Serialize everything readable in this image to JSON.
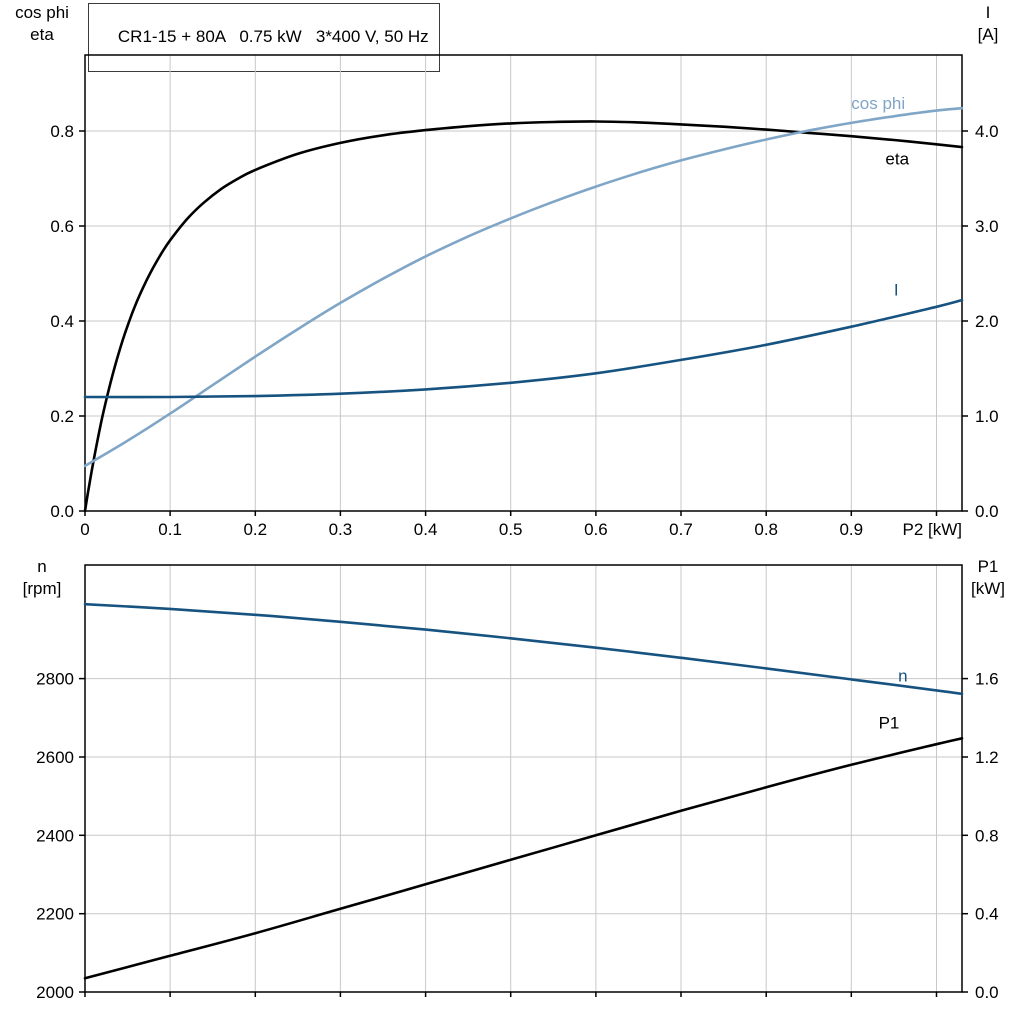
{
  "header": {
    "title": "CR1-15 + 80A   0.75 kW   3*400 V, 50 Hz"
  },
  "colors": {
    "grid": "#c8c8c8",
    "axis": "#000000",
    "eta": "#000000",
    "cos_phi": "#7fa5c7",
    "current": "#175380",
    "speed": "#175380",
    "p1": "#000000"
  },
  "chart_data": [
    {
      "type": "line",
      "name": "motor-electrical-curves",
      "title": "CR1-15 + 80A   0.75 kW   3*400 V, 50 Hz",
      "x_axis": {
        "label": "P2 [kW]",
        "range": [
          0,
          1.03
        ],
        "ticks": [
          0,
          0.1,
          0.2,
          0.3,
          0.4,
          0.5,
          0.6,
          0.7,
          0.8,
          0.9
        ],
        "tick_labels": [
          "0",
          "0.1",
          "0.2",
          "0.3",
          "0.4",
          "0.5",
          "0.6",
          "0.7",
          "0.8",
          "0.9"
        ],
        "grid_values": [
          0.1,
          0.2,
          0.3,
          0.4,
          0.5,
          0.6,
          0.7,
          0.8,
          0.9,
          1.0
        ]
      },
      "left_axis": {
        "title_lines": [
          "cos phi",
          "eta"
        ],
        "range": [
          0,
          0.96
        ],
        "ticks": [
          0,
          0.2,
          0.4,
          0.6,
          0.8
        ],
        "tick_labels": [
          "0.0",
          "0.2",
          "0.4",
          "0.6",
          "0.8"
        ]
      },
      "right_axis": {
        "title_lines": [
          "I",
          "[A]"
        ],
        "range": [
          0,
          4.8
        ],
        "ticks": [
          0,
          1,
          2,
          3,
          4
        ],
        "tick_labels": [
          "0.0",
          "1.0",
          "2.0",
          "3.0",
          "4.0"
        ]
      },
      "series": [
        {
          "name": "eta",
          "label": "eta",
          "axis": "left",
          "color": "#000000",
          "label_pos": [
            0.94,
            0.73
          ],
          "points": [
            [
              0,
              0
            ],
            [
              0.005,
              0.055
            ],
            [
              0.01,
              0.105
            ],
            [
              0.02,
              0.195
            ],
            [
              0.03,
              0.27
            ],
            [
              0.04,
              0.335
            ],
            [
              0.05,
              0.39
            ],
            [
              0.06,
              0.437
            ],
            [
              0.07,
              0.477
            ],
            [
              0.08,
              0.512
            ],
            [
              0.09,
              0.543
            ],
            [
              0.1,
              0.57
            ],
            [
              0.12,
              0.615
            ],
            [
              0.14,
              0.65
            ],
            [
              0.16,
              0.678
            ],
            [
              0.18,
              0.7
            ],
            [
              0.2,
              0.718
            ],
            [
              0.25,
              0.752
            ],
            [
              0.3,
              0.775
            ],
            [
              0.35,
              0.791
            ],
            [
              0.4,
              0.802
            ],
            [
              0.45,
              0.81
            ],
            [
              0.5,
              0.816
            ],
            [
              0.55,
              0.819
            ],
            [
              0.6,
              0.82
            ],
            [
              0.65,
              0.818
            ],
            [
              0.7,
              0.814
            ],
            [
              0.75,
              0.809
            ],
            [
              0.8,
              0.803
            ],
            [
              0.85,
              0.796
            ],
            [
              0.9,
              0.789
            ],
            [
              0.95,
              0.781
            ],
            [
              1.0,
              0.772
            ],
            [
              1.03,
              0.766
            ]
          ]
        },
        {
          "name": "cos-phi",
          "label": "cos phi",
          "axis": "left",
          "color": "#7fa5c7",
          "label_pos": [
            0.9,
            0.846
          ],
          "points": [
            [
              0,
              0.095
            ],
            [
              0.05,
              0.148
            ],
            [
              0.1,
              0.205
            ],
            [
              0.15,
              0.265
            ],
            [
              0.2,
              0.325
            ],
            [
              0.25,
              0.383
            ],
            [
              0.3,
              0.438
            ],
            [
              0.35,
              0.489
            ],
            [
              0.4,
              0.536
            ],
            [
              0.45,
              0.578
            ],
            [
              0.5,
              0.616
            ],
            [
              0.55,
              0.651
            ],
            [
              0.6,
              0.683
            ],
            [
              0.65,
              0.712
            ],
            [
              0.7,
              0.738
            ],
            [
              0.75,
              0.761
            ],
            [
              0.8,
              0.782
            ],
            [
              0.85,
              0.801
            ],
            [
              0.9,
              0.817
            ],
            [
              0.95,
              0.831
            ],
            [
              1.0,
              0.843
            ],
            [
              1.03,
              0.848
            ]
          ]
        },
        {
          "name": "current",
          "label": "I",
          "axis": "right",
          "color": "#175380",
          "label_pos": [
            0.95,
            2.27
          ],
          "points": [
            [
              0,
              1.2
            ],
            [
              0.1,
              1.2
            ],
            [
              0.2,
              1.21
            ],
            [
              0.3,
              1.235
            ],
            [
              0.4,
              1.28
            ],
            [
              0.5,
              1.35
            ],
            [
              0.6,
              1.45
            ],
            [
              0.7,
              1.59
            ],
            [
              0.8,
              1.75
            ],
            [
              0.9,
              1.94
            ],
            [
              1.0,
              2.15
            ],
            [
              1.03,
              2.22
            ]
          ]
        }
      ]
    },
    {
      "type": "line",
      "name": "speed-power-curves",
      "x_axis": {
        "label": "",
        "range": [
          0,
          1.03
        ],
        "ticks": [
          0,
          0.1,
          0.2,
          0.3,
          0.4,
          0.5,
          0.6,
          0.7,
          0.8,
          0.9
        ],
        "tick_labels": [],
        "grid_values": [
          0.1,
          0.2,
          0.3,
          0.4,
          0.5,
          0.6,
          0.7,
          0.8,
          0.9,
          1.0
        ]
      },
      "left_axis": {
        "title_lines": [
          "n",
          "[rpm]"
        ],
        "range": [
          2000,
          3090
        ],
        "ticks": [
          2000,
          2200,
          2400,
          2600,
          2800
        ],
        "tick_labels": [
          "2000",
          "2200",
          "2400",
          "2600",
          "2800"
        ]
      },
      "right_axis": {
        "title_lines": [
          "P1",
          "[kW]"
        ],
        "range": [
          0,
          2.18
        ],
        "ticks": [
          0,
          0.4,
          0.8,
          1.2,
          1.6
        ],
        "tick_labels": [
          "0.0",
          "0.4",
          "0.8",
          "1.2",
          "1.6"
        ]
      },
      "series": [
        {
          "name": "speed",
          "label": "n",
          "axis": "left",
          "color": "#175380",
          "label_pos": [
            0.955,
            2792
          ],
          "points": [
            [
              0,
              2990
            ],
            [
              0.1,
              2978
            ],
            [
              0.2,
              2963
            ],
            [
              0.3,
              2945
            ],
            [
              0.4,
              2925
            ],
            [
              0.5,
              2903
            ],
            [
              0.6,
              2879
            ],
            [
              0.7,
              2853
            ],
            [
              0.8,
              2826
            ],
            [
              0.9,
              2798
            ],
            [
              1.0,
              2770
            ],
            [
              1.03,
              2761
            ]
          ]
        },
        {
          "name": "p1",
          "label": "P1",
          "axis": "right",
          "color": "#000000",
          "label_pos": [
            0.932,
            1.345
          ],
          "points": [
            [
              0,
              0.07
            ],
            [
              0.1,
              0.185
            ],
            [
              0.2,
              0.3
            ],
            [
              0.3,
              0.425
            ],
            [
              0.4,
              0.55
            ],
            [
              0.5,
              0.675
            ],
            [
              0.6,
              0.8
            ],
            [
              0.7,
              0.925
            ],
            [
              0.8,
              1.045
            ],
            [
              0.9,
              1.16
            ],
            [
              1.0,
              1.265
            ],
            [
              1.03,
              1.295
            ]
          ]
        }
      ]
    }
  ]
}
